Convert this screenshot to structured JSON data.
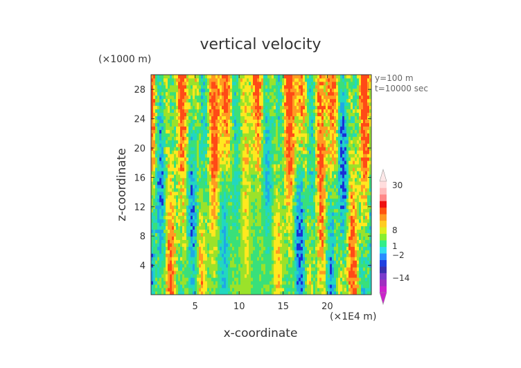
{
  "chart_data": {
    "type": "heatmap",
    "title": "vertical velocity",
    "xlabel": "x-coordinate",
    "ylabel": "z-coordinate",
    "x_unit": "(×1E4 m)",
    "y_unit": "(×1000 m)",
    "xlim": [
      0,
      25
    ],
    "ylim": [
      0,
      30
    ],
    "x_ticks": [
      "5",
      "10",
      "15",
      "20"
    ],
    "x_tick_values": [
      5,
      10,
      15,
      20
    ],
    "y_ticks": [
      "4",
      "8",
      "12",
      "16",
      "20",
      "24",
      "28"
    ],
    "y_tick_values": [
      4,
      8,
      12,
      16,
      20,
      24,
      28
    ],
    "annotations": [
      "y=100 m",
      "t=10000 sec"
    ],
    "colorbar": {
      "labels": [
        "30",
        "8",
        "1",
        "−2",
        "−14"
      ],
      "label_values": [
        30,
        8,
        1,
        -2,
        -14
      ],
      "colors": [
        "#cc22cc",
        "#a030c0",
        "#7a3ccc",
        "#3a30b0",
        "#2040e0",
        "#2a8cff",
        "#33ddee",
        "#33ee88",
        "#88ee33",
        "#ddee22",
        "#ffcc22",
        "#ff9922",
        "#ff5511",
        "#ee1111",
        "#ff8888",
        "#ffbbbb",
        "#ffdddd"
      ]
    },
    "field_colors": {
      "strong_down": "#1a2fd6",
      "down": "#1fa8e6",
      "weak_down": "#22d7c0",
      "neutral": "#39e07a",
      "weak_up": "#9be22a",
      "up": "#ffe81f",
      "strong_up": "#ff9a22",
      "very_strong_up": "#ff4a17"
    }
  }
}
